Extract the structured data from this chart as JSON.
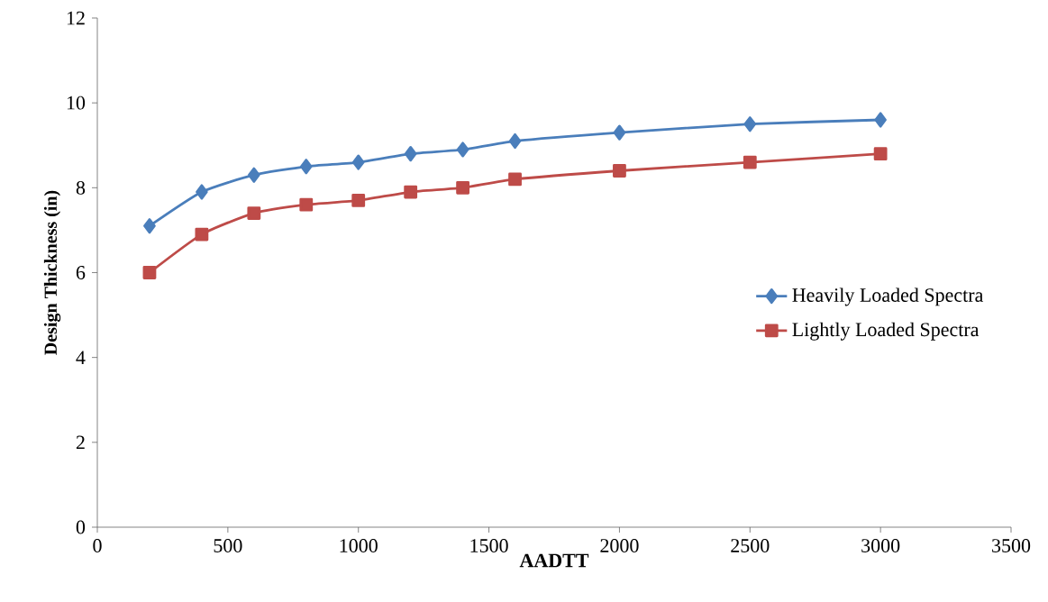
{
  "chart_data": {
    "type": "line",
    "xlabel": "AADTT",
    "ylabel": "Design Thickness (in)",
    "x": [
      200,
      400,
      600,
      800,
      1000,
      1200,
      1400,
      1600,
      2000,
      2500,
      3000
    ],
    "series": [
      {
        "name": "Heavily Loaded Spectra",
        "color": "#4a7ebb",
        "marker": "diamond",
        "values": [
          7.1,
          7.9,
          8.3,
          8.5,
          8.6,
          8.8,
          8.9,
          9.1,
          9.3,
          9.5,
          9.6
        ]
      },
      {
        "name": "Lightly Loaded Spectra",
        "color": "#be4b48",
        "marker": "square",
        "values": [
          6.0,
          6.9,
          7.4,
          7.6,
          7.7,
          7.9,
          8.0,
          8.2,
          8.4,
          8.6,
          8.8
        ]
      }
    ],
    "xlim": [
      0,
      3500
    ],
    "xticks": [
      0,
      500,
      1000,
      1500,
      2000,
      2500,
      3000,
      3500
    ],
    "ylim": [
      0,
      12
    ],
    "yticks": [
      0,
      2,
      4,
      6,
      8,
      10,
      12
    ],
    "grid": false,
    "legend": "right",
    "line_style": "solid"
  }
}
